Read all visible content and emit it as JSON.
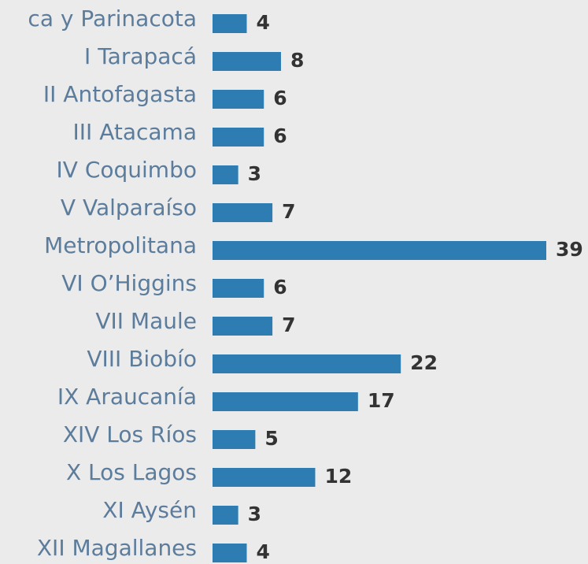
{
  "chart_data": {
    "type": "bar",
    "orientation": "horizontal",
    "categories": [
      "ca y Parinacota",
      "I Tarapacá",
      "II Antofagasta",
      "III Atacama",
      "IV Coquimbo",
      "V Valparaíso",
      "Metropolitana",
      "VI O’Higgins",
      "VII Maule",
      "VIII Biobío",
      "IX Araucanía",
      "XIV Los Ríos",
      "X Los Lagos",
      "XI Aysén",
      "XII Magallanes"
    ],
    "values": [
      4,
      8,
      6,
      6,
      3,
      7,
      39,
      6,
      7,
      22,
      17,
      5,
      12,
      3,
      4
    ],
    "color": "#2e7db2"
  }
}
